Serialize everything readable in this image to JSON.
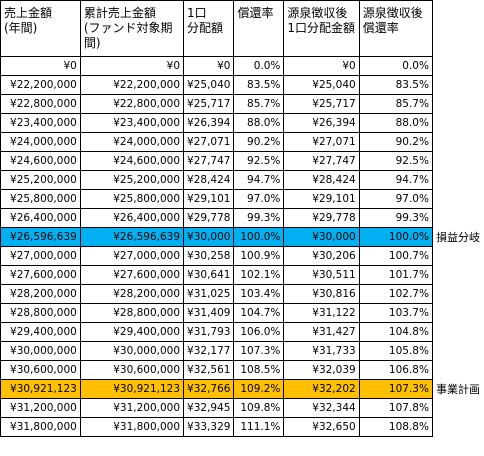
{
  "headers": [
    "売上金額\n(年間)",
    "累計売上金額\n(ファンド対象期間)",
    "1口\n分配額",
    "償還率",
    "源泉徴収後\n1口分配金額",
    "源泉徴収後\n償還率"
  ],
  "rows": [
    {
      "sales": "¥0",
      "cumulative": "¥0",
      "dividend": "¥0",
      "rate": "0.0%",
      "after_tax_dividend": "¥0",
      "after_tax_rate": "0.0%",
      "note": "",
      "highlight": ""
    },
    {
      "sales": "¥22,200,000",
      "cumulative": "¥22,200,000",
      "dividend": "¥25,040",
      "rate": "83.5%",
      "after_tax_dividend": "¥25,040",
      "after_tax_rate": "83.5%",
      "note": "",
      "highlight": ""
    },
    {
      "sales": "¥22,800,000",
      "cumulative": "¥22,800,000",
      "dividend": "¥25,717",
      "rate": "85.7%",
      "after_tax_dividend": "¥25,717",
      "after_tax_rate": "85.7%",
      "note": "",
      "highlight": ""
    },
    {
      "sales": "¥23,400,000",
      "cumulative": "¥23,400,000",
      "dividend": "¥26,394",
      "rate": "88.0%",
      "after_tax_dividend": "¥26,394",
      "after_tax_rate": "88.0%",
      "note": "",
      "highlight": ""
    },
    {
      "sales": "¥24,000,000",
      "cumulative": "¥24,000,000",
      "dividend": "¥27,071",
      "rate": "90.2%",
      "after_tax_dividend": "¥27,071",
      "after_tax_rate": "90.2%",
      "note": "",
      "highlight": ""
    },
    {
      "sales": "¥24,600,000",
      "cumulative": "¥24,600,000",
      "dividend": "¥27,747",
      "rate": "92.5%",
      "after_tax_dividend": "¥27,747",
      "after_tax_rate": "92.5%",
      "note": "",
      "highlight": ""
    },
    {
      "sales": "¥25,200,000",
      "cumulative": "¥25,200,000",
      "dividend": "¥28,424",
      "rate": "94.7%",
      "after_tax_dividend": "¥28,424",
      "after_tax_rate": "94.7%",
      "note": "",
      "highlight": ""
    },
    {
      "sales": "¥25,800,000",
      "cumulative": "¥25,800,000",
      "dividend": "¥29,101",
      "rate": "97.0%",
      "after_tax_dividend": "¥29,101",
      "after_tax_rate": "97.0%",
      "note": "",
      "highlight": ""
    },
    {
      "sales": "¥26,400,000",
      "cumulative": "¥26,400,000",
      "dividend": "¥29,778",
      "rate": "99.3%",
      "after_tax_dividend": "¥29,778",
      "after_tax_rate": "99.3%",
      "note": "",
      "highlight": ""
    },
    {
      "sales": "¥26,596,639",
      "cumulative": "¥26,596,639",
      "dividend": "¥30,000",
      "rate": "100.0%",
      "after_tax_dividend": "¥30,000",
      "after_tax_rate": "100.0%",
      "note": "損益分岐",
      "highlight": "cyan"
    },
    {
      "sales": "¥27,000,000",
      "cumulative": "¥27,000,000",
      "dividend": "¥30,258",
      "rate": "100.9%",
      "after_tax_dividend": "¥30,206",
      "after_tax_rate": "100.7%",
      "note": "",
      "highlight": ""
    },
    {
      "sales": "¥27,600,000",
      "cumulative": "¥27,600,000",
      "dividend": "¥30,641",
      "rate": "102.1%",
      "after_tax_dividend": "¥30,511",
      "after_tax_rate": "101.7%",
      "note": "",
      "highlight": ""
    },
    {
      "sales": "¥28,200,000",
      "cumulative": "¥28,200,000",
      "dividend": "¥31,025",
      "rate": "103.4%",
      "after_tax_dividend": "¥30,816",
      "after_tax_rate": "102.7%",
      "note": "",
      "highlight": ""
    },
    {
      "sales": "¥28,800,000",
      "cumulative": "¥28,800,000",
      "dividend": "¥31,409",
      "rate": "104.7%",
      "after_tax_dividend": "¥31,122",
      "after_tax_rate": "103.7%",
      "note": "",
      "highlight": ""
    },
    {
      "sales": "¥29,400,000",
      "cumulative": "¥29,400,000",
      "dividend": "¥31,793",
      "rate": "106.0%",
      "after_tax_dividend": "¥31,427",
      "after_tax_rate": "104.8%",
      "note": "",
      "highlight": ""
    },
    {
      "sales": "¥30,000,000",
      "cumulative": "¥30,000,000",
      "dividend": "¥32,177",
      "rate": "107.3%",
      "after_tax_dividend": "¥31,733",
      "after_tax_rate": "105.8%",
      "note": "",
      "highlight": ""
    },
    {
      "sales": "¥30,600,000",
      "cumulative": "¥30,600,000",
      "dividend": "¥32,561",
      "rate": "108.5%",
      "after_tax_dividend": "¥32,039",
      "after_tax_rate": "106.8%",
      "note": "",
      "highlight": ""
    },
    {
      "sales": "¥30,921,123",
      "cumulative": "¥30,921,123",
      "dividend": "¥32,766",
      "rate": "109.2%",
      "after_tax_dividend": "¥32,202",
      "after_tax_rate": "107.3%",
      "note": "事業計画",
      "highlight": "gold"
    },
    {
      "sales": "¥31,200,000",
      "cumulative": "¥31,200,000",
      "dividend": "¥32,945",
      "rate": "109.8%",
      "after_tax_dividend": "¥32,344",
      "after_tax_rate": "107.8%",
      "note": "",
      "highlight": ""
    },
    {
      "sales": "¥31,800,000",
      "cumulative": "¥31,800,000",
      "dividend": "¥33,329",
      "rate": "111.1%",
      "after_tax_dividend": "¥32,650",
      "after_tax_rate": "108.8%",
      "note": "",
      "highlight": ""
    }
  ]
}
